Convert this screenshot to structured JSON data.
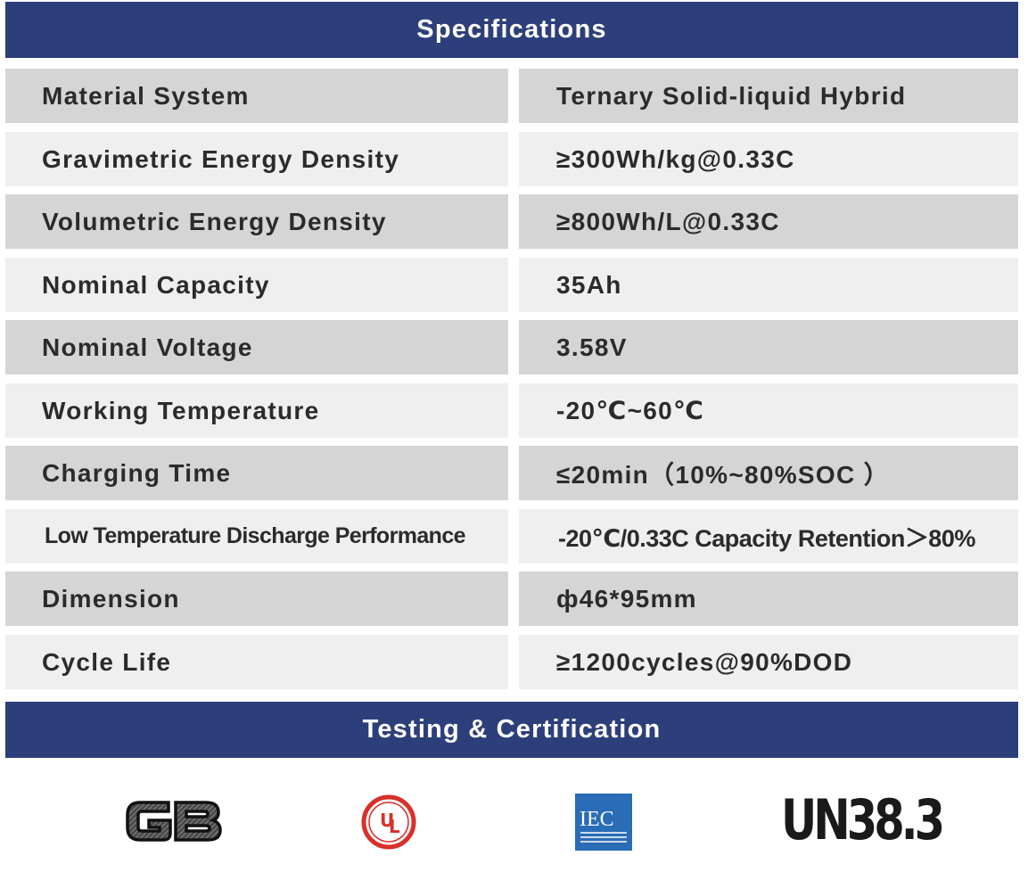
{
  "header": {
    "title": "Specifications"
  },
  "specs": [
    {
      "label": "Material System",
      "value": "Ternary Solid-liquid Hybrid"
    },
    {
      "label": "Gravimetric Energy Density",
      "value": "≥300Wh/kg@0.33C"
    },
    {
      "label": "Volumetric Energy Density",
      "value": "≥800Wh/L@0.33C"
    },
    {
      "label": "Nominal Capacity",
      "value": "35Ah"
    },
    {
      "label": "Nominal Voltage",
      "value": "3.58V"
    },
    {
      "label": "Working Temperature",
      "value": "-20℃~60℃"
    },
    {
      "label": "Charging Time",
      "value": "≤20min（10%~80%SOC ）"
    },
    {
      "label": "Low Temperature Discharge Performance",
      "value": "-20℃/0.33C Capacity Retention＞80%"
    },
    {
      "label": "Dimension",
      "value": "ф46*95mm"
    },
    {
      "label": "Cycle Life",
      "value": "≥1200cycles@90%DOD"
    }
  ],
  "certification": {
    "title": "Testing & Certification",
    "logos": [
      {
        "name": "gb-logo",
        "text": "GB"
      },
      {
        "name": "ul-logo",
        "text": "UL"
      },
      {
        "name": "iec-logo",
        "text": "IEC"
      },
      {
        "name": "un383-logo",
        "text": "UN38.3"
      }
    ]
  },
  "colors": {
    "banner": "#2d3f7a",
    "row_dark": "#d5d5d5",
    "row_light": "#efefef",
    "text": "#2b2b2b",
    "ul_red": "#d6312a",
    "iec_blue": "#2a6cb6"
  }
}
